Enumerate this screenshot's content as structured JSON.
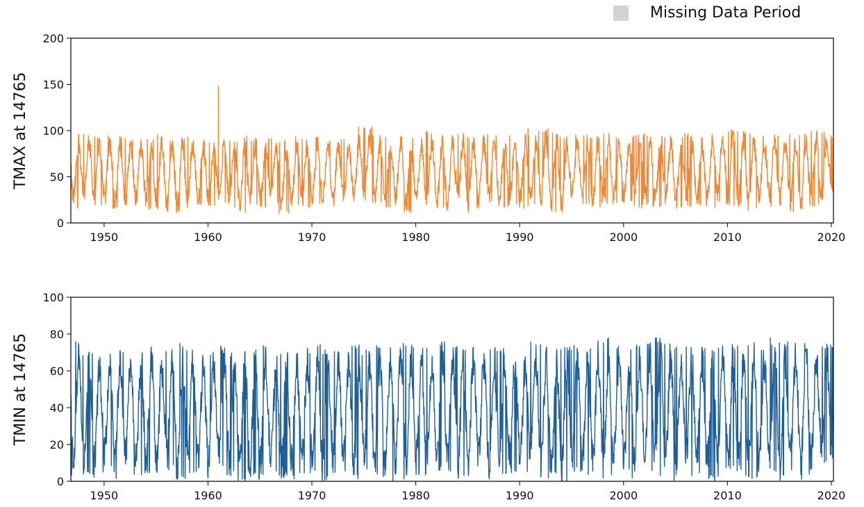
{
  "legend": {
    "missing_label": "Missing Data Period",
    "missing_color": "#d3d3d3"
  },
  "chart_data": [
    {
      "type": "line",
      "title": "",
      "xlabel": "",
      "ylabel": "TMAX at 14765",
      "color": "#ed8936",
      "xlim": [
        1946.8,
        2020.2
      ],
      "ylim": [
        0,
        200
      ],
      "xticks": [
        1950,
        1960,
        1970,
        1980,
        1990,
        2000,
        2010,
        2020
      ],
      "yticks": [
        0,
        50,
        100,
        150,
        200
      ],
      "series": [
        {
          "seasonal_mean": 58,
          "seasonal_amplitude": 32,
          "annual_peaks_approx": [
            100,
            97,
            95,
            97,
            95,
            93,
            92,
            94,
            96,
            92,
            95,
            95,
            92,
            90,
            92,
            90,
            95,
            92,
            93,
            92,
            90,
            94,
            92,
            95,
            90,
            92,
            94,
            98,
            105,
            95,
            93,
            96,
            95,
            94,
            100,
            96,
            97,
            98,
            95,
            95,
            96,
            94,
            95,
            97,
            96,
            102,
            98,
            95,
            97,
            96,
            95,
            97,
            96,
            96,
            97,
            98,
            95,
            95,
            96,
            98,
            94,
            97,
            99,
            102,
            100,
            97,
            96,
            98,
            97,
            96,
            97,
            100,
            99,
            95
          ],
          "annual_lows_approx": [
            15,
            22,
            18,
            20,
            15,
            17,
            18,
            15,
            15,
            12,
            10,
            15,
            18,
            16,
            22,
            17,
            10,
            18,
            15,
            20,
            10,
            16,
            17,
            18,
            20,
            15,
            17,
            22,
            18,
            20,
            15,
            17,
            10,
            17,
            12,
            15,
            10,
            18,
            8,
            15,
            20,
            16,
            18,
            15,
            20,
            18,
            12,
            8,
            22,
            18,
            16,
            20,
            18,
            22,
            15,
            18,
            17,
            20,
            15,
            17,
            18,
            15,
            20,
            18,
            17,
            13,
            20,
            18,
            15,
            12,
            15,
            18,
            20,
            30
          ],
          "outliers": [
            {
              "x": 1961.0,
              "y": 148
            },
            {
              "x": 1974.5,
              "y": 104
            },
            {
              "x": 1990.8,
              "y": 102
            }
          ]
        }
      ]
    },
    {
      "type": "line",
      "title": "",
      "xlabel": "",
      "ylabel": "TMIN at 14765",
      "color": "#1f5f96",
      "xlim": [
        1946.8,
        2020.2
      ],
      "ylim": [
        0,
        100
      ],
      "xticks": [
        1950,
        1960,
        1970,
        1980,
        1990,
        2000,
        2010,
        2020
      ],
      "yticks": [
        0,
        20,
        40,
        60,
        80,
        100
      ],
      "series": [
        {
          "seasonal_mean": 40,
          "seasonal_amplitude": 32,
          "annual_peaks_approx": [
            76,
            72,
            70,
            74,
            75,
            73,
            70,
            76,
            72,
            74,
            75,
            73,
            70,
            72,
            74,
            70,
            72,
            73,
            74,
            72,
            71,
            74,
            73,
            75,
            72,
            74,
            73,
            75,
            72,
            74,
            74,
            78,
            76,
            74,
            75,
            76,
            73,
            74,
            76,
            75,
            74,
            73,
            75,
            74,
            76,
            75,
            73,
            74,
            75,
            76,
            77,
            78,
            75,
            74,
            76,
            77,
            78,
            75,
            74,
            76,
            75,
            74,
            76,
            75,
            76,
            77,
            75,
            78,
            76,
            77,
            75,
            78,
            76,
            75
          ],
          "annual_lows_approx": [
            3,
            2,
            0,
            5,
            0,
            8,
            0,
            3,
            0,
            5,
            0,
            3,
            2,
            0,
            5,
            3,
            0,
            2,
            0,
            3,
            1,
            0,
            2,
            3,
            0,
            4,
            2,
            0,
            3,
            1,
            0,
            2,
            0,
            3,
            0,
            5,
            3,
            0,
            2,
            4,
            0,
            3,
            2,
            5,
            3,
            0,
            2,
            0,
            5,
            3,
            2,
            0,
            3,
            4,
            0,
            2,
            3,
            5,
            0,
            2,
            3,
            0,
            2,
            5,
            3,
            0,
            2,
            3,
            0,
            5,
            0,
            2,
            10,
            11
          ]
        }
      ]
    }
  ]
}
